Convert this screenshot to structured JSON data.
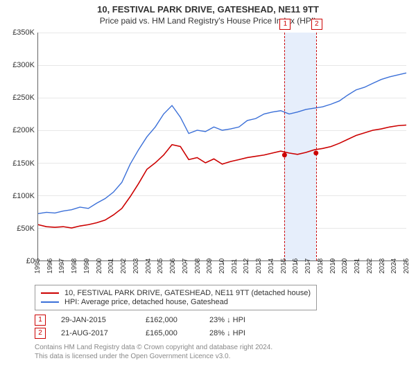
{
  "title": {
    "line1": "10, FESTIVAL PARK DRIVE, GATESHEAD, NE11 9TT",
    "line2": "Price paid vs. HM Land Registry's House Price Index (HPI)"
  },
  "chart": {
    "type": "line",
    "background_color": "#ffffff",
    "grid_color": "#e7e7e7",
    "axis_color": "#666666",
    "ylim": [
      0,
      350000
    ],
    "ytick_step": 50000,
    "ylabels": [
      "£0",
      "£50K",
      "£100K",
      "£150K",
      "£200K",
      "£250K",
      "£300K",
      "£350K"
    ],
    "x_start_year": 1995,
    "x_end_year": 2025,
    "xlabels": [
      "1995",
      "1996",
      "1997",
      "1998",
      "1999",
      "2000",
      "2001",
      "2002",
      "2003",
      "2004",
      "2005",
      "2006",
      "2007",
      "2008",
      "2009",
      "2010",
      "2011",
      "2012",
      "2013",
      "2014",
      "2015",
      "2016",
      "2017",
      "2018",
      "2019",
      "2020",
      "2021",
      "2022",
      "2023",
      "2024",
      "2025"
    ],
    "series": [
      {
        "name": "HPI: Average price, detached house, Gateshead",
        "color": "#3a6fd8",
        "line_width": 1.4,
        "data": [
          72000,
          74000,
          73000,
          76000,
          78000,
          82000,
          80000,
          88000,
          95000,
          105000,
          120000,
          148000,
          170000,
          190000,
          205000,
          225000,
          238000,
          220000,
          195000,
          200000,
          198000,
          205000,
          200000,
          202000,
          205000,
          215000,
          218000,
          225000,
          228000,
          230000,
          225000,
          228000,
          232000,
          234000,
          236000,
          240000,
          245000,
          254000,
          262000,
          266000,
          272000,
          278000,
          282000,
          285000,
          288000
        ]
      },
      {
        "name": "10, FESTIVAL PARK DRIVE, GATESHEAD, NE11 9TT (detached house)",
        "color": "#cc0000",
        "line_width": 1.6,
        "data": [
          55000,
          52000,
          51000,
          52000,
          50000,
          53000,
          55000,
          58000,
          62000,
          70000,
          80000,
          98000,
          118000,
          140000,
          150000,
          162000,
          178000,
          175000,
          155000,
          158000,
          150000,
          156000,
          148000,
          152000,
          155000,
          158000,
          160000,
          162000,
          165000,
          168000,
          165000,
          163000,
          166000,
          170000,
          172000,
          175000,
          180000,
          186000,
          192000,
          196000,
          200000,
          202000,
          205000,
          207000,
          208000
        ]
      }
    ],
    "markers_band": {
      "from_year": 2015.08,
      "to_year": 2017.64,
      "color": "#e6eefb"
    },
    "event_markers": [
      {
        "num": "1",
        "year": 2015.08,
        "y_value": 162000
      },
      {
        "num": "2",
        "year": 2017.64,
        "y_value": 165000
      }
    ]
  },
  "legend": {
    "series1_color": "#cc0000",
    "series1_label": "10, FESTIVAL PARK DRIVE, GATESHEAD, NE11 9TT (detached house)",
    "series2_color": "#3a6fd8",
    "series2_label": "HPI: Average price, detached house, Gateshead"
  },
  "events": [
    {
      "num": "1",
      "date": "29-JAN-2015",
      "price": "£162,000",
      "pct": "23% ↓ HPI"
    },
    {
      "num": "2",
      "date": "21-AUG-2017",
      "price": "£165,000",
      "pct": "28% ↓ HPI"
    }
  ],
  "footer": {
    "line1": "Contains HM Land Registry data © Crown copyright and database right 2024.",
    "line2": "This data is licensed under the Open Government Licence v3.0."
  }
}
